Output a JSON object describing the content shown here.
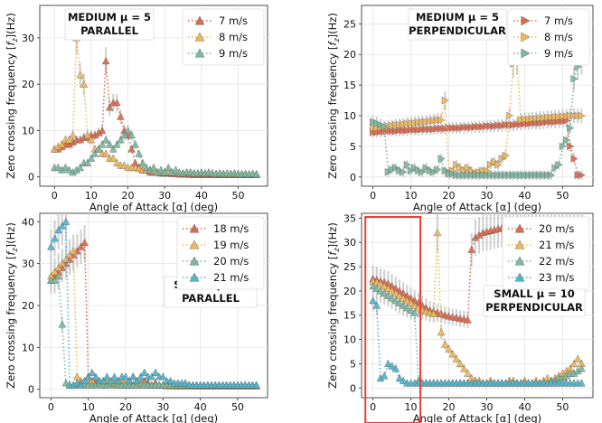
{
  "figure": {
    "xlabel": "Angle of Attack [α] (deg)",
    "ylabel_main": "Zero crossing frequency [",
    "ylabel_sub": "z",
    "ylabel_tail": "](Hz)",
    "ylabel_f": "f"
  },
  "colors": {
    "red": "#dd6a4e",
    "orange": "#f0b85a",
    "green": "#7db9a0",
    "blue": "#4fb6cc",
    "highlight": "#e8413a"
  },
  "chart_data": [
    {
      "type": "line",
      "title": [
        "MEDIUM μ = 5",
        "PARALLEL"
      ],
      "xlabel": "Angle of Attack [α] (deg)",
      "ylabel": "Zero crossing frequency [fz](Hz)",
      "marker": "triangle-up",
      "xlim": [
        -4,
        58
      ],
      "ylim": [
        -2,
        37
      ],
      "xticks": [
        0,
        10,
        20,
        30,
        40,
        50
      ],
      "yticks": [
        0,
        10,
        20,
        30
      ],
      "grid": true,
      "legend": "top-right",
      "x": [
        0,
        1,
        2,
        3,
        4,
        5,
        6,
        7,
        8,
        9,
        10,
        11,
        12,
        13,
        14,
        15,
        16,
        17,
        18,
        19,
        20,
        21,
        22,
        23,
        24,
        25,
        26,
        27,
        28,
        29,
        30,
        31,
        32,
        33,
        34,
        35,
        36,
        37,
        38,
        39,
        40,
        41,
        42,
        43,
        44,
        45,
        46,
        47,
        48,
        49,
        50,
        51,
        52,
        53,
        54,
        55
      ],
      "series": [
        {
          "name": "7 m/s",
          "color": "#dd6a4e",
          "values": [
            6,
            6,
            6.5,
            7,
            7,
            7.5,
            8,
            8,
            8.5,
            8.5,
            9,
            9,
            9.5,
            10,
            25,
            15,
            16,
            16,
            13,
            10,
            9,
            6,
            3,
            2,
            1.5,
            1.5,
            1,
            1,
            1,
            0.8,
            0.8,
            0.8,
            0.7,
            0.7,
            0.6,
            0.6,
            0.6,
            0.5,
            0.5,
            0.5,
            0.5,
            0.5,
            0.5,
            0.5,
            0.5,
            0.5,
            0.5,
            0.5,
            0.5,
            0.5,
            0.5,
            0.5,
            0.5,
            0.5,
            0.5,
            0.5
          ]
        },
        {
          "name": "8 m/s",
          "color": "#f0b85a",
          "values": [
            6,
            6.5,
            7,
            8,
            8,
            9,
            30,
            22,
            20,
            9,
            8,
            6,
            6,
            5,
            5,
            4,
            4,
            3,
            2.5,
            2.5,
            2,
            2,
            2,
            1.8,
            1.5,
            1.5,
            1.5,
            1.2,
            1,
            1,
            1,
            1,
            1,
            1,
            0.8,
            0.8,
            0.8,
            0.8,
            0.8,
            0.7,
            0.7,
            0.7,
            0.7,
            0.7,
            0.6,
            0.6,
            0.6,
            0.6,
            0.6,
            0.6,
            0.6,
            0.6,
            0.6,
            0.6,
            0.6,
            0.6
          ]
        },
        {
          "name": "9 m/s",
          "color": "#7db9a0",
          "values": [
            2,
            2,
            1.5,
            2,
            1.5,
            1,
            1.5,
            2,
            3,
            3,
            4,
            5,
            6,
            7,
            8,
            7,
            6,
            7,
            8,
            9,
            10,
            9,
            7,
            5,
            3,
            2,
            1.5,
            2,
            1,
            1.5,
            1,
            2,
            1,
            1.5,
            1,
            0.8,
            1,
            1,
            0.8,
            0.8,
            1,
            0.8,
            1,
            0.8,
            0.7,
            0.8,
            0.7,
            0.8,
            0.7,
            0.8,
            0.7,
            0.6,
            0.7,
            0.6,
            0.7,
            0.6
          ]
        }
      ]
    },
    {
      "type": "line",
      "title": [
        "MEDIUM μ = 5",
        "PERPENDICULAR"
      ],
      "xlabel": "Angle of Attack [α] (deg)",
      "ylabel": "Zero crossing frequency [fz](Hz)",
      "marker": "triangle-right",
      "xlim": [
        -3,
        58
      ],
      "ylim": [
        -1.5,
        28
      ],
      "xticks": [
        0,
        10,
        20,
        30,
        40,
        50
      ],
      "yticks": [
        0,
        5,
        10,
        15,
        20,
        25
      ],
      "grid": true,
      "legend": "top-right",
      "x": [
        0,
        1,
        2,
        3,
        4,
        5,
        6,
        7,
        8,
        9,
        10,
        11,
        12,
        13,
        14,
        15,
        16,
        17,
        18,
        19,
        20,
        21,
        22,
        23,
        24,
        25,
        26,
        27,
        28,
        29,
        30,
        31,
        32,
        33,
        34,
        35,
        36,
        37,
        38,
        39,
        40,
        41,
        42,
        43,
        44,
        45,
        46,
        47,
        48,
        49,
        50,
        51,
        52,
        53,
        54,
        55
      ],
      "series": [
        {
          "name": "7 m/s",
          "color": "#dd6a4e",
          "values": [
            7.3,
            7.3,
            7.4,
            7.4,
            7.5,
            7.5,
            7.5,
            7.6,
            7.6,
            7.6,
            7.7,
            7.7,
            7.7,
            7.8,
            7.8,
            7.8,
            7.8,
            7.9,
            7.9,
            7.9,
            8,
            8,
            8,
            8,
            8.1,
            8.1,
            8.1,
            8.2,
            8.2,
            8.2,
            8.3,
            8.3,
            8.3,
            8.4,
            8.4,
            8.5,
            8.5,
            8.5,
            8.6,
            8.6,
            8.7,
            8.7,
            8.8,
            8.8,
            8.8,
            8.9,
            9,
            9,
            9,
            9.1,
            9.1,
            9.2,
            5,
            3,
            0.3,
            0.3
          ]
        },
        {
          "name": "8 m/s",
          "color": "#f0b85a",
          "values": [
            8,
            8,
            8.1,
            8.2,
            8.3,
            8.4,
            8.5,
            8.5,
            8.6,
            8.7,
            8.8,
            8.8,
            8.9,
            9,
            9,
            9.1,
            9.2,
            9.3,
            9.3,
            12.5,
            0.8,
            1,
            2,
            1.5,
            1,
            1.5,
            1,
            0.5,
            0.8,
            1,
            1,
            2,
            2.5,
            2,
            3,
            3.5,
            10,
            18.5,
            19,
            9.3,
            9.4,
            9.4,
            9.5,
            9.5,
            9.6,
            9.6,
            9.7,
            9.7,
            9.8,
            9.8,
            9.9,
            9.9,
            10,
            10,
            10,
            10
          ]
        },
        {
          "name": "9 m/s",
          "color": "#7db9a0",
          "values": [
            9,
            8.8,
            8.5,
            8.2,
            0.8,
            1.2,
            1.5,
            1,
            0.8,
            2,
            1,
            1.5,
            1,
            0.8,
            1.5,
            1,
            0.8,
            1.2,
            3,
            1,
            0.5,
            0.5,
            0.3,
            0.3,
            0.3,
            0.3,
            0.3,
            0.3,
            0.3,
            0.3,
            0.3,
            0.3,
            0.3,
            0.3,
            0.3,
            0.3,
            0.3,
            0.3,
            0.3,
            0.3,
            0.3,
            0.3,
            0.3,
            0.3,
            0.3,
            0.3,
            0.3,
            0.3,
            1.5,
            2,
            5,
            6,
            8,
            16,
            18,
            19
          ]
        }
      ]
    },
    {
      "type": "line",
      "title": [
        "SMALL μ = 5",
        "PARALLEL"
      ],
      "xlabel": "Angle of Attack [α] (deg)",
      "ylabel": "Zero crossing frequency [fz](Hz)",
      "marker": "triangle-up",
      "xlim": [
        -3,
        58
      ],
      "ylim": [
        -2,
        42
      ],
      "xticks": [
        0,
        10,
        20,
        30,
        40,
        50
      ],
      "yticks": [
        0,
        10,
        20,
        30,
        40
      ],
      "grid": true,
      "legend": "top-right",
      "x": [
        0,
        1,
        2,
        3,
        4,
        5,
        6,
        7,
        8,
        9,
        10,
        11,
        12,
        13,
        14,
        15,
        16,
        17,
        18,
        19,
        20,
        21,
        22,
        23,
        24,
        25,
        26,
        27,
        28,
        29,
        30,
        31,
        32,
        33,
        34,
        35,
        36,
        37,
        38,
        39,
        40,
        41,
        42,
        43,
        44,
        45,
        46,
        47,
        48,
        49,
        50,
        51,
        52,
        53,
        54,
        55
      ],
      "series": [
        {
          "name": "18 m/s",
          "color": "#dd6a4e",
          "values": [
            26,
            27,
            28,
            29,
            30,
            31,
            32,
            33,
            34,
            35,
            3,
            2,
            2.5,
            2,
            2,
            1.5,
            2,
            1.5,
            2,
            2,
            1,
            2,
            3,
            2,
            1.5,
            2,
            1.5,
            1,
            1.5,
            1,
            1,
            1,
            1,
            1,
            0.8,
            0.8,
            0.8,
            1,
            0.8,
            0.8,
            0.8,
            0.8,
            0.8,
            0.8,
            0.8,
            0.8,
            0.8,
            0.8,
            0.8,
            0.8,
            0.8,
            0.8,
            0.8,
            0.8,
            0.8,
            0.8
          ]
        },
        {
          "name": "19 m/s",
          "color": "#f0b85a",
          "values": [
            27,
            28,
            29,
            30,
            31,
            32,
            33,
            3,
            2,
            2,
            1.5,
            2,
            1,
            1.5,
            1,
            2,
            1.5,
            1,
            1,
            2,
            1.5,
            1,
            1,
            1,
            1,
            1.5,
            1,
            1,
            1,
            1,
            1,
            0.8,
            0.8,
            0.8,
            0.8,
            0.8,
            0.8,
            0.8,
            0.8,
            0.8,
            0.8,
            0.8,
            0.8,
            0.8,
            0.8,
            0.8,
            0.8,
            0.8,
            0.8,
            0.8,
            0.8,
            0.8,
            0.8,
            0.8,
            0.8,
            0.8
          ]
        },
        {
          "name": "20 m/s",
          "color": "#7db9a0",
          "values": [
            26,
            26,
            27,
            15.5,
            1.5,
            1,
            1,
            1,
            1.5,
            1,
            1,
            1,
            1,
            1.5,
            1,
            1,
            1,
            1.5,
            1,
            1,
            1,
            1,
            1,
            1,
            1.5,
            1,
            1,
            1,
            1,
            1,
            1,
            1,
            1,
            1,
            1,
            1,
            1,
            1,
            1,
            1,
            1,
            1,
            1,
            1,
            1,
            1,
            1,
            1,
            1,
            1,
            1,
            1,
            1,
            1,
            1,
            1
          ]
        },
        {
          "name": "21 m/s",
          "color": "#4fb6cc",
          "values": [
            34,
            36,
            38,
            39,
            40,
            1,
            1,
            1.5,
            1,
            2,
            3,
            4,
            3,
            2,
            2,
            3,
            2,
            3,
            2,
            3,
            3,
            2,
            3,
            2,
            3,
            4,
            3,
            3,
            4,
            3,
            3,
            2,
            2,
            1.5,
            1.5,
            1.5,
            1.5,
            1,
            1,
            1,
            1,
            1,
            1,
            1,
            1,
            1,
            1,
            1,
            1,
            1,
            1,
            1,
            1,
            1,
            1,
            1
          ]
        }
      ]
    },
    {
      "type": "line",
      "title": [
        "SMALL μ = 10",
        "PERPENDICULAR"
      ],
      "xlabel": "Angle of Attack [α] (deg)",
      "ylabel": "Zero crossing frequency [fz](Hz)",
      "marker": "triangle-up",
      "xlim": [
        -3,
        58
      ],
      "ylim": [
        -2,
        36
      ],
      "xticks": [
        0,
        10,
        20,
        30,
        40,
        50
      ],
      "yticks": [
        0,
        5,
        10,
        15,
        20,
        25,
        30,
        35
      ],
      "grid": true,
      "legend": "top-right",
      "highlight": {
        "x_range": [
          -2,
          12.5
        ],
        "color": "#e8413a"
      },
      "x": [
        0,
        1,
        2,
        3,
        4,
        5,
        6,
        7,
        8,
        9,
        10,
        11,
        12,
        13,
        14,
        15,
        16,
        17,
        18,
        19,
        20,
        21,
        22,
        23,
        24,
        25,
        26,
        27,
        28,
        29,
        30,
        31,
        32,
        33,
        34,
        35,
        36,
        37,
        38,
        39,
        40,
        41,
        42,
        43,
        44,
        45,
        46,
        47,
        48,
        49,
        50,
        51,
        52,
        53,
        54,
        55
      ],
      "series": [
        {
          "name": "20 m/s",
          "color": "#dd6a4e",
          "values": [
            22.5,
            22.3,
            22,
            21.8,
            21.5,
            21,
            20.5,
            20,
            19.5,
            19,
            18.5,
            18,
            17.5,
            17,
            16.5,
            16,
            15.8,
            15.5,
            15.3,
            15,
            14.8,
            14.6,
            14.5,
            14.3,
            14.2,
            14,
            28.5,
            31,
            31.5,
            32,
            32.2,
            32.4,
            32.6,
            32.8,
            33,
            33,
            33.2,
            33.3,
            33.4,
            33.5,
            33.6,
            33.7,
            33.8,
            33.9,
            34,
            34,
            34,
            34.1,
            34.2,
            34.2,
            34.3,
            34.3,
            34.4,
            34.4,
            34.5,
            34.5
          ]
        },
        {
          "name": "21 m/s",
          "color": "#f0b85a",
          "values": [
            22,
            21.8,
            21.5,
            21,
            20.5,
            20,
            19.5,
            19,
            18.5,
            18,
            17.5,
            17,
            16.5,
            16,
            15.8,
            15.5,
            15.3,
            32,
            11.5,
            9,
            8,
            7,
            6,
            5,
            4,
            3,
            2,
            1.5,
            1.5,
            1,
            1,
            1.5,
            1,
            1,
            1,
            1,
            1.5,
            1.5,
            1,
            1,
            1.5,
            1,
            1,
            1.5,
            1,
            1.5,
            2,
            1.5,
            2,
            2.5,
            3,
            3.5,
            4,
            5,
            6,
            5
          ]
        },
        {
          "name": "22 m/s",
          "color": "#7db9a0",
          "values": [
            21,
            20.5,
            20,
            19.5,
            19,
            18.5,
            18,
            17.5,
            17,
            16.5,
            16,
            15.5,
            1.5,
            1,
            1,
            1,
            1,
            1,
            1,
            1,
            1,
            1,
            1,
            1,
            1,
            1,
            1,
            1,
            1,
            1,
            1,
            1,
            1,
            1,
            1,
            1,
            1,
            1,
            1,
            1,
            1,
            1,
            1,
            1,
            1,
            1,
            1,
            1.5,
            1.5,
            2,
            2,
            2.5,
            3,
            3,
            3.5,
            4
          ]
        },
        {
          "name": "23 m/s",
          "color": "#4fb6cc",
          "values": [
            18,
            17,
            2,
            2.5,
            5,
            4.5,
            4,
            2,
            1.5,
            1,
            1,
            1,
            1,
            1,
            1,
            1,
            1,
            1,
            1,
            1,
            1,
            1,
            1,
            1,
            1,
            1,
            1,
            1,
            1,
            1,
            1,
            1,
            1,
            1,
            1,
            1,
            1,
            1,
            1,
            1,
            1,
            1,
            1,
            1,
            1,
            1,
            1,
            1,
            1,
            1,
            1,
            1,
            1,
            1,
            1,
            1
          ]
        }
      ]
    }
  ]
}
